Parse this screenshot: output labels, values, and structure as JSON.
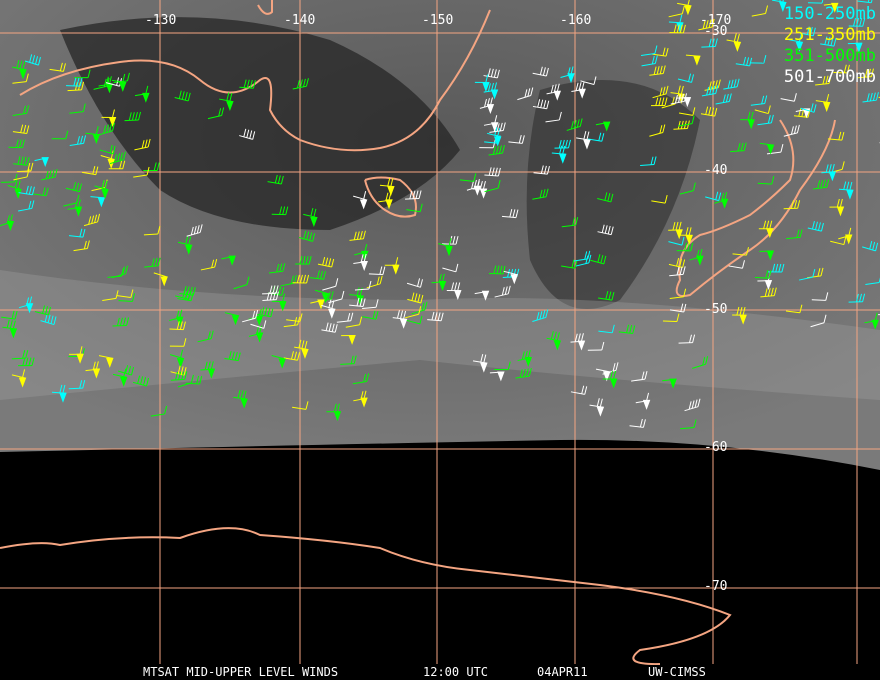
{
  "title": "MTSAT MID-UPPER LEVEL WINDS",
  "time": "12:00 UTC",
  "date": "04APR11",
  "source": "UW-CIMSS",
  "longitude_labels": [
    "-130",
    "-140",
    "-150",
    "-160",
    "-170"
  ],
  "latitude_labels": [
    "-30",
    "-40",
    "-50",
    "-60",
    "-70"
  ],
  "legend": [
    {
      "label": "150-250mb",
      "color": "#00ffff"
    },
    {
      "label": "251-350mb",
      "color": "#ffff00"
    },
    {
      "label": "351-500mb",
      "color": "#00ff00"
    },
    {
      "label": "501-700mb",
      "color": "#ffffff"
    }
  ],
  "colors": {
    "grid": "#f4a582",
    "coast": "#f4a582",
    "background": "#000000"
  }
}
